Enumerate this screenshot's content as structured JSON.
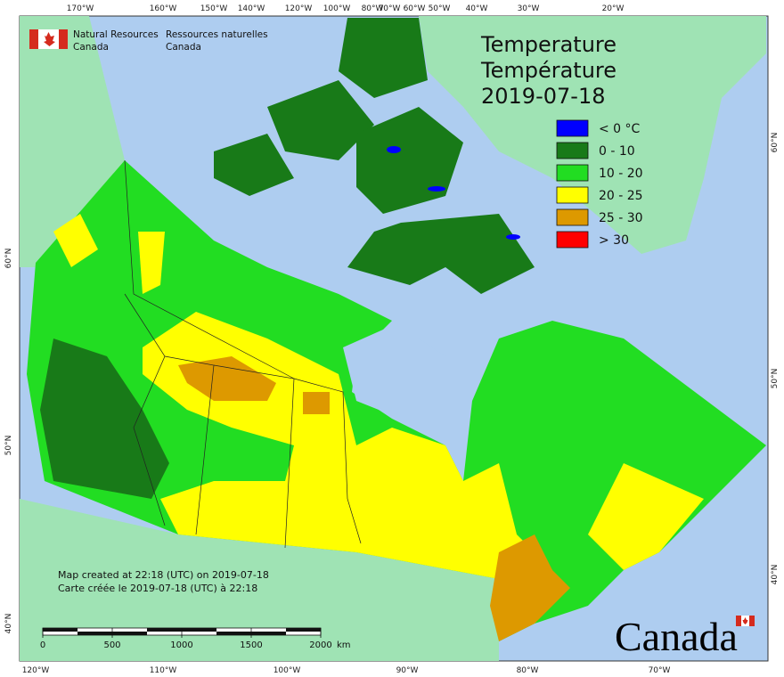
{
  "header": {
    "agency_en": [
      "Natural Resources",
      "Canada"
    ],
    "agency_fr": [
      "Ressources naturelles",
      "Canada"
    ]
  },
  "title": [
    "Temperature",
    "Température",
    "2019-07-18"
  ],
  "legend": [
    {
      "label": "< 0 °C",
      "color": "#0000ff"
    },
    {
      "label": "0 - 10",
      "color": "#187a18"
    },
    {
      "label": "10 - 20",
      "color": "#22dd22"
    },
    {
      "label": "20 - 25",
      "color": "#ffff00"
    },
    {
      "label": "25 - 30",
      "color": "#dd9900"
    },
    {
      "label": "> 30",
      "color": "#ff0000"
    }
  ],
  "graticule": {
    "top": [
      "170°W",
      "160°W",
      "150°W",
      "140°W",
      "120°W",
      "100°W",
      "80°W",
      "70°W",
      "60°W",
      "50°W",
      "40°W",
      "30°W",
      "20°W"
    ],
    "bottom": [
      "120°W",
      "110°W",
      "100°W",
      "90°W",
      "80°W",
      "70°W"
    ],
    "left": [
      "60°N",
      "50°N",
      "40°N"
    ],
    "right": [
      "60°N",
      "50°N",
      "40°N"
    ]
  },
  "notes": [
    "Map created at 22:18 (UTC) on 2019-07-18",
    "Carte créée le 2019-07-18 (UTC) à 22:18"
  ],
  "scale": {
    "ticks": [
      0,
      500,
      1000,
      1500,
      2000
    ],
    "unit": "km"
  },
  "wordmark": "Canada"
}
